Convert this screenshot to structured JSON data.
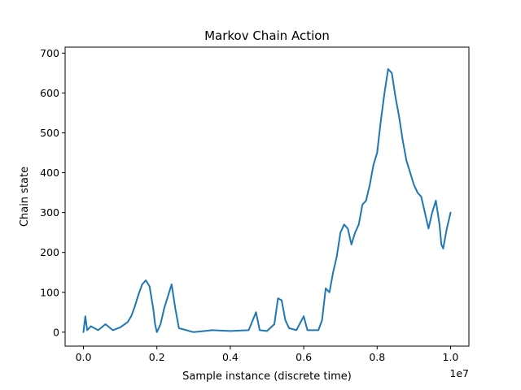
{
  "chart_data": {
    "type": "line",
    "title": "Markov Chain Action",
    "xlabel": "Sample instance (discrete time)",
    "ylabel": "Chain state",
    "x_offset_label": "1e7",
    "xlim": [
      -0.05,
      1.05
    ],
    "ylim": [
      -35,
      715
    ],
    "xticks": [
      0.0,
      0.2,
      0.4,
      0.6,
      0.8,
      1.0
    ],
    "xtick_labels": [
      "0.0",
      "0.2",
      "0.4",
      "0.6",
      "0.8",
      "1.0"
    ],
    "yticks": [
      0,
      100,
      200,
      300,
      400,
      500,
      600,
      700
    ],
    "ytick_labels": [
      "0",
      "100",
      "200",
      "300",
      "400",
      "500",
      "600",
      "700"
    ],
    "grid": false,
    "series": [
      {
        "color": "#1f77b4",
        "points": [
          [
            0.0,
            0
          ],
          [
            0.005,
            40
          ],
          [
            0.01,
            5
          ],
          [
            0.02,
            15
          ],
          [
            0.04,
            5
          ],
          [
            0.06,
            20
          ],
          [
            0.08,
            5
          ],
          [
            0.1,
            12
          ],
          [
            0.12,
            25
          ],
          [
            0.13,
            40
          ],
          [
            0.14,
            65
          ],
          [
            0.15,
            95
          ],
          [
            0.16,
            120
          ],
          [
            0.17,
            130
          ],
          [
            0.18,
            115
          ],
          [
            0.19,
            60
          ],
          [
            0.195,
            20
          ],
          [
            0.2,
            0
          ],
          [
            0.21,
            20
          ],
          [
            0.22,
            60
          ],
          [
            0.23,
            90
          ],
          [
            0.24,
            120
          ],
          [
            0.25,
            60
          ],
          [
            0.26,
            10
          ],
          [
            0.3,
            0
          ],
          [
            0.35,
            5
          ],
          [
            0.4,
            3
          ],
          [
            0.45,
            5
          ],
          [
            0.47,
            50
          ],
          [
            0.48,
            5
          ],
          [
            0.5,
            3
          ],
          [
            0.52,
            20
          ],
          [
            0.53,
            85
          ],
          [
            0.54,
            80
          ],
          [
            0.55,
            30
          ],
          [
            0.56,
            10
          ],
          [
            0.58,
            5
          ],
          [
            0.6,
            40
          ],
          [
            0.61,
            5
          ],
          [
            0.64,
            5
          ],
          [
            0.65,
            30
          ],
          [
            0.66,
            110
          ],
          [
            0.67,
            100
          ],
          [
            0.68,
            150
          ],
          [
            0.69,
            190
          ],
          [
            0.7,
            250
          ],
          [
            0.71,
            270
          ],
          [
            0.72,
            260
          ],
          [
            0.73,
            220
          ],
          [
            0.74,
            250
          ],
          [
            0.75,
            270
          ],
          [
            0.76,
            320
          ],
          [
            0.77,
            330
          ],
          [
            0.78,
            370
          ],
          [
            0.79,
            420
          ],
          [
            0.8,
            450
          ],
          [
            0.81,
            530
          ],
          [
            0.82,
            600
          ],
          [
            0.83,
            660
          ],
          [
            0.84,
            650
          ],
          [
            0.85,
            590
          ],
          [
            0.86,
            540
          ],
          [
            0.87,
            480
          ],
          [
            0.88,
            430
          ],
          [
            0.89,
            400
          ],
          [
            0.9,
            370
          ],
          [
            0.91,
            350
          ],
          [
            0.92,
            340
          ],
          [
            0.93,
            300
          ],
          [
            0.94,
            260
          ],
          [
            0.95,
            300
          ],
          [
            0.96,
            330
          ],
          [
            0.97,
            270
          ],
          [
            0.975,
            220
          ],
          [
            0.98,
            210
          ],
          [
            0.99,
            260
          ],
          [
            1.0,
            300
          ]
        ]
      }
    ]
  }
}
